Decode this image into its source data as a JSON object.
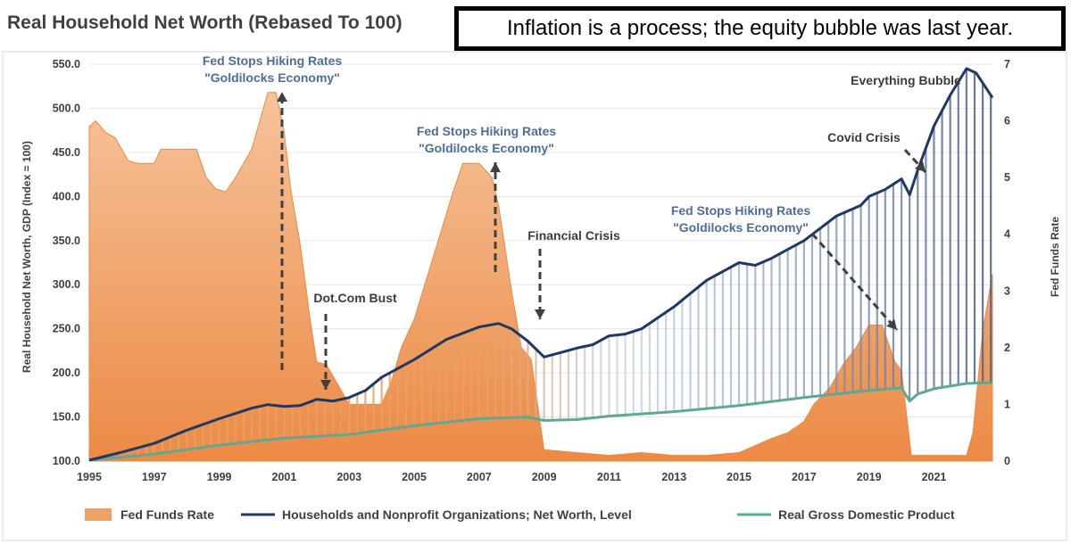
{
  "chart_data": {
    "type": "area",
    "title": "Real Household Net Worth (Rebased To 100)",
    "callout": "Inflation is a process; the equity bubble was last year.",
    "ylabel_left": "Real Household Net Worth, GDP (Index = 100)",
    "ylabel_right": "Fed Funds Rate",
    "ylim_left": [
      100,
      550
    ],
    "ylim_right": [
      0,
      7
    ],
    "left_ticks": [
      "100.0",
      "150.0",
      "200.0",
      "250.0",
      "300.0",
      "350.0",
      "400.0",
      "450.0",
      "500.0",
      "550.0"
    ],
    "right_ticks": [
      "0",
      "1",
      "2",
      "3",
      "4",
      "5",
      "6",
      "7"
    ],
    "x_ticks": [
      "1995",
      "1997",
      "1999",
      "2001",
      "2003",
      "2005",
      "2007",
      "2009",
      "2011",
      "2013",
      "2015",
      "2017",
      "2019",
      "2021"
    ],
    "xlim": [
      1995,
      2022.8
    ],
    "grid": true,
    "legend_placement": "bottom",
    "series": [
      {
        "name": "Fed Funds Rate",
        "axis": "right",
        "style": "area",
        "color": "#f0a060",
        "x": [
          1995.0,
          1995.2,
          1995.5,
          1995.8,
          1996.0,
          1996.2,
          1996.5,
          1997.0,
          1997.2,
          1997.6,
          1998.0,
          1998.3,
          1998.6,
          1998.9,
          1999.2,
          1999.5,
          1999.8,
          2000.0,
          2000.2,
          2000.5,
          2000.75,
          2001.0,
          2001.2,
          2001.5,
          2001.8,
          2002.0,
          2002.3,
          2002.6,
          2003.0,
          2003.5,
          2004.0,
          2004.3,
          2004.6,
          2005.0,
          2005.4,
          2005.8,
          2006.2,
          2006.5,
          2007.0,
          2007.4,
          2007.6,
          2007.8,
          2008.0,
          2008.3,
          2008.6,
          2008.9,
          2009.0,
          2010.0,
          2011.0,
          2012.0,
          2013.0,
          2014.0,
          2015.0,
          2015.8,
          2016.0,
          2016.5,
          2017.0,
          2017.3,
          2017.8,
          2018.2,
          2018.6,
          2019.0,
          2019.4,
          2019.8,
          2020.0,
          2020.2,
          2020.3,
          2021.0,
          2022.0,
          2022.2,
          2022.5,
          2022.8
        ],
        "values": [
          5.9,
          6.0,
          5.8,
          5.7,
          5.5,
          5.3,
          5.25,
          5.25,
          5.5,
          5.5,
          5.5,
          5.5,
          5.0,
          4.8,
          4.75,
          5.0,
          5.3,
          5.5,
          5.9,
          6.5,
          6.5,
          5.8,
          4.8,
          3.8,
          2.5,
          1.75,
          1.7,
          1.4,
          1.0,
          1.0,
          1.0,
          1.4,
          2.0,
          2.5,
          3.25,
          4.0,
          4.75,
          5.25,
          5.25,
          5.0,
          4.5,
          3.75,
          3.0,
          2.0,
          1.8,
          0.6,
          0.2,
          0.15,
          0.1,
          0.15,
          0.1,
          0.1,
          0.15,
          0.35,
          0.4,
          0.5,
          0.7,
          1.0,
          1.3,
          1.7,
          2.0,
          2.4,
          2.4,
          1.75,
          1.6,
          0.6,
          0.1,
          0.1,
          0.1,
          0.5,
          2.3,
          3.3
        ]
      },
      {
        "name": "Households and Nonprofit Organizations; Net Worth, Level",
        "axis": "left",
        "style": "line",
        "color": "#1f3864",
        "x": [
          1995.0,
          1996.0,
          1997.0,
          1998.0,
          1999.0,
          2000.0,
          2000.5,
          2001.0,
          2001.5,
          2002.0,
          2002.5,
          2003.0,
          2003.5,
          2004.0,
          2005.0,
          2006.0,
          2007.0,
          2007.6,
          2008.0,
          2008.5,
          2009.0,
          2009.5,
          2010.0,
          2010.5,
          2011.0,
          2011.5,
          2012.0,
          2013.0,
          2014.0,
          2015.0,
          2015.5,
          2016.0,
          2017.0,
          2018.0,
          2018.75,
          2019.0,
          2019.5,
          2020.0,
          2020.25,
          2020.5,
          2021.0,
          2021.5,
          2022.0,
          2022.3,
          2022.8
        ],
        "values": [
          101,
          110,
          120,
          135,
          148,
          160,
          164,
          162,
          163,
          170,
          168,
          172,
          180,
          195,
          215,
          238,
          252,
          256,
          250,
          236,
          218,
          223,
          228,
          232,
          242,
          244,
          250,
          275,
          305,
          325,
          322,
          330,
          350,
          378,
          390,
          400,
          408,
          420,
          402,
          430,
          480,
          515,
          545,
          540,
          512
        ]
      },
      {
        "name": "Real Gross Domestic Product",
        "axis": "left",
        "style": "line",
        "color": "#5fa896",
        "x": [
          1995.0,
          1997.0,
          1999.0,
          2001.0,
          2003.0,
          2005.0,
          2007.0,
          2008.5,
          2009.0,
          2010.0,
          2011.0,
          2013.0,
          2015.0,
          2017.0,
          2019.0,
          2020.0,
          2020.25,
          2020.5,
          2021.0,
          2022.0,
          2022.8
        ],
        "values": [
          101,
          108,
          118,
          126,
          130,
          140,
          148,
          150,
          146,
          147,
          151,
          156,
          163,
          172,
          180,
          183,
          168,
          176,
          182,
          188,
          189
        ]
      }
    ],
    "annotations": [
      {
        "lines": [
          "Fed Stops Hiking Rates",
          "\"Goldilocks Economy\""
        ],
        "color": "blue"
      },
      {
        "lines": [
          "Fed Stops Hiking Rates",
          "\"Goldilocks Economy\""
        ],
        "color": "blue"
      },
      {
        "lines": [
          "Fed Stops Hiking Rates",
          "\"Goldilocks Economy\""
        ],
        "color": "blue"
      },
      {
        "lines": [
          "Dot.Com Bust"
        ],
        "color": "dark"
      },
      {
        "lines": [
          "Financial Crisis"
        ],
        "color": "dark"
      },
      {
        "lines": [
          "Covid Crisis"
        ],
        "color": "dark"
      },
      {
        "lines": [
          "Everything Bubble"
        ],
        "color": "dark"
      }
    ]
  }
}
